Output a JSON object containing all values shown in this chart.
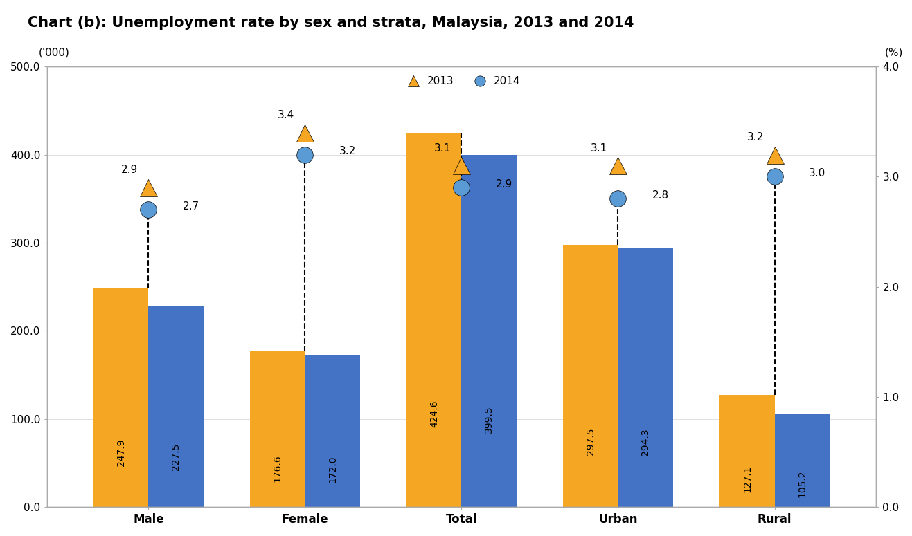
{
  "title": "Chart (b): Unemployment rate by sex and strata, Malaysia, 2013 and 2014",
  "categories": [
    "Male",
    "Female",
    "Total",
    "Urban",
    "Rural"
  ],
  "bar_2013": [
    247.9,
    176.6,
    424.6,
    297.5,
    127.1
  ],
  "bar_2014": [
    227.5,
    172.0,
    399.5,
    294.3,
    105.2
  ],
  "rate_2013": [
    2.9,
    3.4,
    3.1,
    3.1,
    3.2
  ],
  "rate_2014": [
    2.7,
    3.2,
    2.9,
    2.8,
    3.0
  ],
  "bar_color_2013": "#F5A623",
  "bar_color_2014": "#4472C4",
  "marker_color_2013": "#F5A623",
  "marker_color_2014": "#5B9BD5",
  "ylabel_left": "('000)",
  "ylabel_right": "(%)",
  "ylim_left": [
    0,
    500
  ],
  "ylim_right": [
    0,
    4.0
  ],
  "yticks_left": [
    0.0,
    100.0,
    200.0,
    300.0,
    400.0,
    500.0
  ],
  "yticks_right": [
    0.0,
    1.0,
    2.0,
    3.0,
    4.0
  ],
  "background_color": "#ffffff",
  "plot_bg_color": "#ffffff",
  "legend_2013": "2013",
  "legend_2014": "2014",
  "bar_width": 0.35,
  "title_fontsize": 15,
  "axis_label_fontsize": 11,
  "tick_fontsize": 11,
  "bar_label_fontsize": 10,
  "rate_label_fontsize": 11,
  "marker_size_triangle": 18,
  "marker_size_circle": 17,
  "category_fontsize": 12
}
